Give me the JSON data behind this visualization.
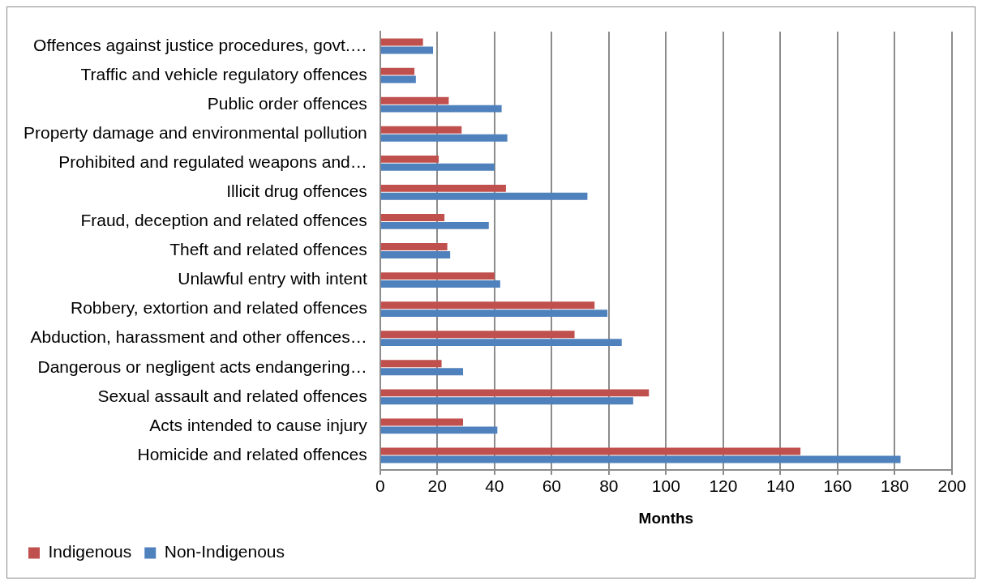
{
  "chart_data": {
    "type": "bar",
    "orientation": "horizontal",
    "xlabel": "Months",
    "categories": [
      "Offences against justice procedures, govt.…",
      "Traffic and vehicle regulatory offences",
      "Public order offences",
      "Property damage and environmental pollution",
      "Prohibited and regulated weapons and…",
      "Illicit drug offences",
      "Fraud, deception and related offences",
      "Theft and related offences",
      "Unlawful entry with intent",
      "Robbery, extortion and related offences",
      "Abduction, harassment and other offences…",
      "Dangerous or negligent acts endangering…",
      "Sexual assault and related offences",
      "Acts intended to cause injury",
      "Homicide and related offences"
    ],
    "series": [
      {
        "name": "Indigenous",
        "color": "#c0504d",
        "values": [
          15,
          12,
          24,
          28.5,
          20.5,
          44,
          22.5,
          23.5,
          40,
          75,
          68,
          21.5,
          94,
          29,
          147
        ]
      },
      {
        "name": "Non-Indigenous",
        "color": "#4f81bd",
        "values": [
          18.5,
          12.5,
          42.5,
          44.5,
          40,
          72.5,
          38,
          24.5,
          42,
          79.5,
          84.5,
          29,
          88.5,
          41,
          182
        ]
      }
    ],
    "xlim": [
      0,
      200
    ],
    "xticks": [
      0,
      20,
      40,
      60,
      80,
      100,
      120,
      140,
      160,
      180,
      200
    ],
    "grid": "x",
    "legend": "bottom left"
  }
}
